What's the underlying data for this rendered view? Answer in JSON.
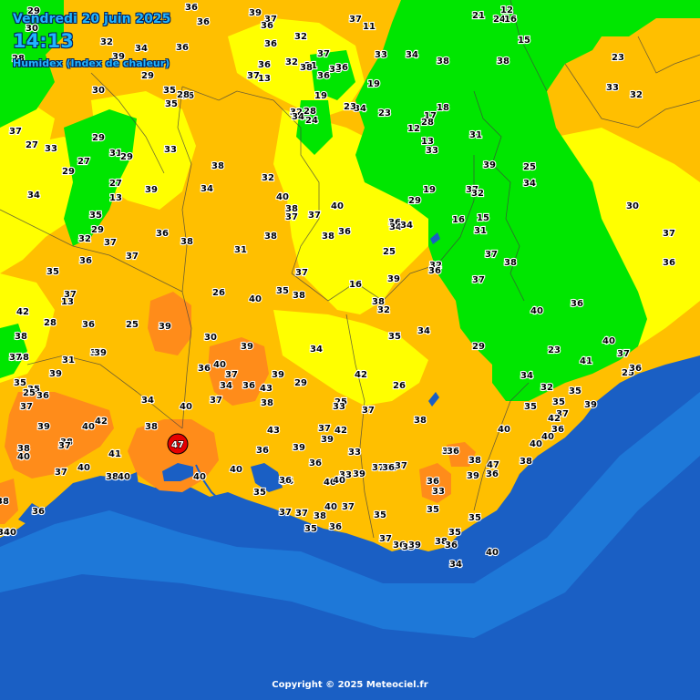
{
  "header": {
    "date": "Vendredi 20 juin 2025",
    "time": "14:13",
    "subtitle": "Humidex (Index de chaleur)"
  },
  "footer": {
    "copyright": "Copyright © 2025 Meteociel.fr"
  },
  "colors": {
    "sea_deep": "#1a5fc4",
    "sea_shallow": "#1e78d8",
    "green": "#00e600",
    "yellow": "#ffff00",
    "light_orange": "#ffbf00",
    "orange": "#ff8c1a",
    "hot": "#ff6633",
    "max_marker": "#e60000",
    "header_text": "#1fb4ff"
  },
  "max_marker": {
    "value": "47"
  },
  "values": [
    "29",
    "36",
    "39",
    "37",
    "36",
    "37",
    "36",
    "11",
    "21",
    "24",
    "16",
    "12",
    "30",
    "32",
    "36",
    "32",
    "34",
    "37",
    "33",
    "36",
    "15",
    "28",
    "34",
    "39",
    "36",
    "32",
    "21",
    "38",
    "35",
    "36",
    "38",
    "38",
    "23",
    "13",
    "37",
    "36",
    "30",
    "35",
    "36",
    "29",
    "35",
    "28",
    "33",
    "19",
    "32",
    "19",
    "28",
    "32",
    "34",
    "23",
    "18",
    "17",
    "23",
    "12",
    "28",
    "37",
    "34",
    "24",
    "29",
    "27",
    "33",
    "13",
    "31",
    "33",
    "29",
    "27",
    "29",
    "38",
    "25",
    "27",
    "31",
    "33",
    "39",
    "32",
    "34",
    "39",
    "19",
    "34",
    "37",
    "34",
    "13",
    "32",
    "29",
    "40",
    "38",
    "30",
    "40",
    "35",
    "37",
    "36",
    "34",
    "16",
    "15",
    "34",
    "29",
    "31",
    "32",
    "37",
    "36",
    "36",
    "37",
    "38",
    "37",
    "31",
    "38",
    "38",
    "36",
    "37",
    "36",
    "32",
    "25",
    "37",
    "35",
    "37",
    "36",
    "37",
    "38",
    "26",
    "40",
    "39",
    "35",
    "38",
    "38",
    "13",
    "16",
    "32",
    "36",
    "37",
    "36",
    "42",
    "25",
    "39",
    "40",
    "28",
    "30",
    "39",
    "23",
    "34",
    "35",
    "34",
    "29",
    "34",
    "40",
    "38",
    "39",
    "41",
    "38",
    "37",
    "37",
    "31",
    "40",
    "36",
    "25",
    "36",
    "39",
    "42",
    "39",
    "35",
    "34",
    "37",
    "35",
    "26",
    "29",
    "32",
    "25",
    "36",
    "34",
    "43",
    "35",
    "35",
    "36",
    "25",
    "33",
    "37",
    "34",
    "37",
    "37",
    "39",
    "35",
    "37",
    "40",
    "36",
    "38",
    "38",
    "40",
    "42",
    "42",
    "40",
    "39",
    "40",
    "38",
    "37",
    "43",
    "40",
    "38",
    "36",
    "39",
    "39",
    "42",
    "37",
    "36",
    "33",
    "41",
    "38",
    "47",
    "36",
    "33",
    "37",
    "40",
    "38",
    "38",
    "35",
    "36",
    "37",
    "36",
    "40",
    "39",
    "36",
    "37",
    "38",
    "40",
    "40",
    "40",
    "36",
    "40",
    "40",
    "34",
    "33",
    "39",
    "38",
    "36",
    "35",
    "35",
    "40",
    "37",
    "37",
    "37",
    "38",
    "35",
    "35",
    "36",
    "35",
    "36",
    "35",
    "33",
    "40",
    "37",
    "38",
    "36",
    "33",
    "36",
    "40",
    "39",
    "34"
  ]
}
